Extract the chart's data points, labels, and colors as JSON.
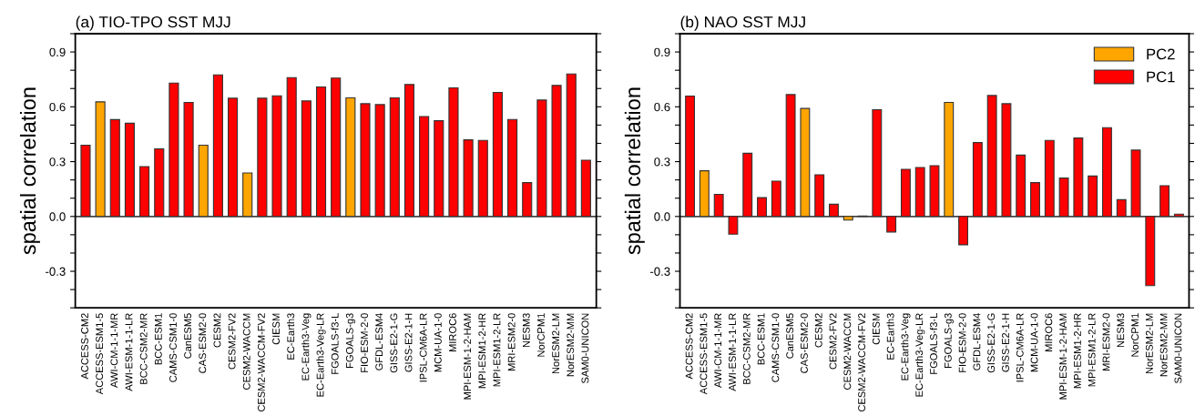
{
  "chart_data": [
    {
      "type": "bar",
      "title": "(a) TIO-TPO SST MJJ",
      "ylabel": "spatial correlation",
      "categories": [
        "ACCESS-CM2",
        "ACCESS-ESM1-5",
        "AWI-CM-1-1-MR",
        "AWI-ESM-1-1-LR",
        "BCC-CSM2-MR",
        "BCC-ESM1",
        "CAMS-CSM1-0",
        "CanESM5",
        "CAS-ESM2-0",
        "CESM2",
        "CESM2-FV2",
        "CESM2-WACCM",
        "CESM2-WACCM-FV2",
        "CIESM",
        "EC-Earth3",
        "EC-Earth3-Veg",
        "EC-Earth3-Veg-LR",
        "FGOALS-f3-L",
        "FGOALS-g3",
        "FIO-ESM-2-0",
        "GFDL-ESM4",
        "GISS-E2-1-G",
        "GISS-E2-1-H",
        "IPSL-CM6A-LR",
        "MCM-UA-1-0",
        "MIROC6",
        "MPI-ESM-1-2-HAM",
        "MPI-ESM1-2-HR",
        "MPI-ESM1-2-LR",
        "MRI-ESM2-0",
        "NESM3",
        "NorCPM1",
        "NorESM2-LM",
        "NorESM2-MM",
        "SAM0-UNICON"
      ],
      "series": [
        {
          "color": "#ffa500",
          "values": [
            null,
            0.627,
            null,
            null,
            null,
            null,
            null,
            null,
            0.39,
            null,
            null,
            0.238,
            null,
            null,
            null,
            null,
            null,
            null,
            0.649,
            null,
            null,
            null,
            null,
            null,
            null,
            null,
            null,
            null,
            null,
            null,
            null,
            null,
            null,
            null,
            null
          ]
        },
        {
          "color": "#ff0000",
          "values": [
            0.39,
            null,
            0.53,
            0.51,
            0.273,
            0.37,
            0.73,
            0.624,
            null,
            0.775,
            0.647,
            null,
            0.647,
            0.66,
            0.76,
            0.632,
            0.709,
            0.757,
            null,
            0.617,
            0.612,
            0.649,
            0.722,
            0.547,
            0.524,
            0.704,
            0.419,
            0.416,
            0.679,
            0.531,
            0.185,
            0.637,
            0.717,
            0.78,
            0.308
          ]
        }
      ],
      "ylim": [
        -0.5,
        1.0
      ],
      "yticks": [
        {
          "value": -0.5,
          "label": null
        },
        {
          "value": -0.4,
          "label": null
        },
        {
          "value": -0.3,
          "label": "-0.3"
        },
        {
          "value": -0.2,
          "label": null
        },
        {
          "value": -0.1,
          "label": null
        },
        {
          "value": 0,
          "label": "0.0"
        },
        {
          "value": 0.1,
          "label": null
        },
        {
          "value": 0.2,
          "label": null
        },
        {
          "value": 0.3,
          "label": "0.3"
        },
        {
          "value": 0.4,
          "label": null
        },
        {
          "value": 0.5,
          "label": null
        },
        {
          "value": 0.6,
          "label": "0.6"
        },
        {
          "value": 0.7,
          "label": null
        },
        {
          "value": 0.8,
          "label": null
        },
        {
          "value": 0.9,
          "label": "0.9"
        },
        {
          "value": 1.0,
          "label": null
        }
      ],
      "ref_lines": [
        {
          "axis": "y",
          "value": 0,
          "color": "#000000"
        }
      ]
    },
    {
      "type": "bar",
      "title": "(b) NAO SST MJJ",
      "ylabel": "spatial correlation",
      "categories": [
        "ACCESS-CM2",
        "ACCESS-ESM1-5",
        "AWI-CM-1-1-MR",
        "AWI-ESM-1-1-LR",
        "BCC-CSM2-MR",
        "BCC-ESM1",
        "CAMS-CSM1-0",
        "CanESM5",
        "CAS-ESM2-0",
        "CESM2",
        "CESM2-FV2",
        "CESM2-WACCM",
        "CESM2-WACCM-FV2",
        "CIESM",
        "EC-Earth3",
        "EC-Earth3-Veg",
        "EC-Earth3-Veg-LR",
        "FGOALS-f3-L",
        "FGOALS-g3",
        "FIO-ESM-2-0",
        "GFDL-ESM4",
        "GISS-E2-1-G",
        "GISS-E2-1-H",
        "IPSL-CM6A-LR",
        "MCM-UA-1-0",
        "MIROC6",
        "MPI-ESM-1-2-HAM",
        "MPI-ESM1-2-HR",
        "MPI-ESM1-2-LR",
        "MRI-ESM2-0",
        "NESM3",
        "NorCPM1",
        "NorESM2-LM",
        "NorESM2-MM",
        "SAM0-UNICON"
      ],
      "series": [
        {
          "name": "PC2",
          "color": "#ffa500",
          "values": [
            null,
            0.25,
            null,
            null,
            null,
            null,
            null,
            null,
            0.591,
            null,
            null,
            -0.02,
            null,
            null,
            null,
            null,
            null,
            null,
            0.624,
            null,
            null,
            null,
            null,
            null,
            null,
            null,
            null,
            null,
            null,
            null,
            null,
            null,
            null,
            null,
            null
          ]
        },
        {
          "name": "PC1",
          "color": "#ff0000",
          "values": [
            0.659,
            null,
            0.121,
            -0.097,
            0.346,
            0.103,
            0.193,
            0.667,
            null,
            0.228,
            0.067,
            null,
            0.003,
            0.584,
            -0.085,
            0.258,
            0.268,
            0.278,
            null,
            -0.155,
            0.404,
            0.662,
            0.617,
            0.336,
            0.185,
            0.416,
            0.21,
            0.429,
            0.221,
            0.486,
            0.092,
            0.363,
            -0.378,
            0.168,
            0.013
          ]
        }
      ],
      "ylim": [
        -0.5,
        1.0
      ],
      "yticks": [
        {
          "value": -0.5,
          "label": null
        },
        {
          "value": -0.4,
          "label": null
        },
        {
          "value": -0.3,
          "label": "-0.3"
        },
        {
          "value": -0.2,
          "label": null
        },
        {
          "value": -0.1,
          "label": null
        },
        {
          "value": 0,
          "label": "0.0"
        },
        {
          "value": 0.1,
          "label": null
        },
        {
          "value": 0.2,
          "label": null
        },
        {
          "value": 0.3,
          "label": "0.3"
        },
        {
          "value": 0.4,
          "label": null
        },
        {
          "value": 0.5,
          "label": null
        },
        {
          "value": 0.6,
          "label": "0.6"
        },
        {
          "value": 0.7,
          "label": null
        },
        {
          "value": 0.8,
          "label": null
        },
        {
          "value": 0.9,
          "label": "0.9"
        },
        {
          "value": 1.0,
          "label": null
        }
      ],
      "ref_lines": [
        {
          "axis": "y",
          "value": 0,
          "color": "#000000"
        }
      ],
      "legend": "top right"
    }
  ]
}
